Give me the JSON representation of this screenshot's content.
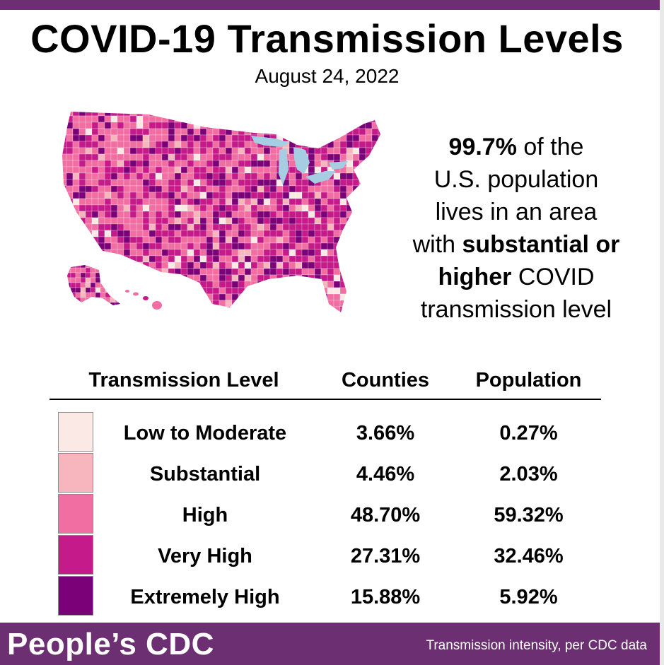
{
  "header": {
    "title": "COVID-19 Transmission Levels",
    "date": "August 24, 2022"
  },
  "stat": {
    "value": "99.7%",
    "part1": "of the",
    "part2": "U.S. population",
    "part3": "lives in an area",
    "part4": "with",
    "bold_phrase_1": "substantial or",
    "bold_phrase_2": "higher",
    "part5": "COVID",
    "part6": "transmission level"
  },
  "colors": {
    "brand": "#6b2f72",
    "low_to_moderate": "#fbe9e6",
    "substantial": "#f7b6bd",
    "high": "#f16ea3",
    "very_high": "#c51b8a",
    "extremely_high": "#7a0177",
    "lakes": "#a6cee3"
  },
  "map": {
    "icon": "us-county-map-icon"
  },
  "chart_data": {
    "type": "table",
    "columns": [
      "Transmission Level",
      "Counties",
      "Population"
    ],
    "rows": [
      {
        "level": "Low to Moderate",
        "counties": "3.66%",
        "population": "0.27%",
        "color": "#fbe9e6"
      },
      {
        "level": "Substantial",
        "counties": "4.46%",
        "population": "2.03%",
        "color": "#f7b6bd"
      },
      {
        "level": "High",
        "counties": "48.70%",
        "population": "59.32%",
        "color": "#f16ea3"
      },
      {
        "level": "Very High",
        "counties": "27.31%",
        "population": "32.46%",
        "color": "#c51b8a"
      },
      {
        "level": "Extremely High",
        "counties": "15.88%",
        "population": "5.92%",
        "color": "#7a0177"
      }
    ]
  },
  "footer": {
    "brand": "People’s CDC",
    "source": "Transmission intensity, per CDC data"
  }
}
